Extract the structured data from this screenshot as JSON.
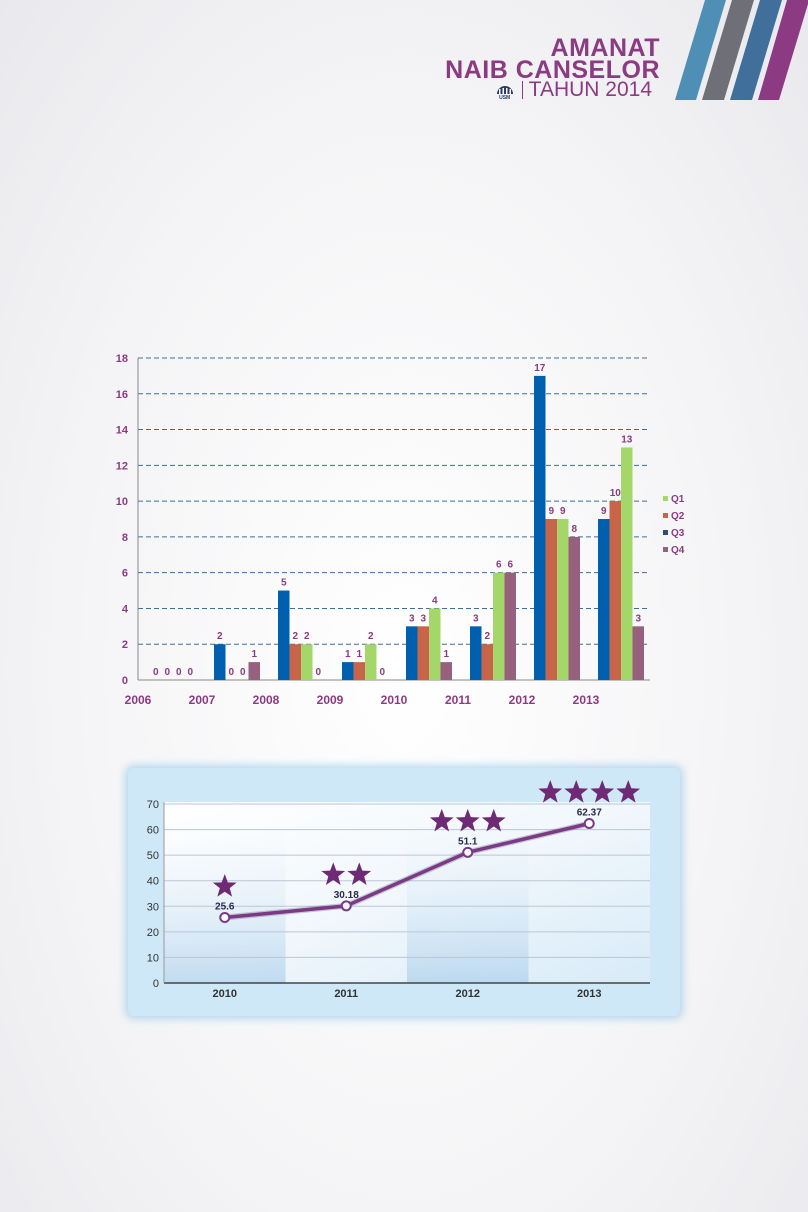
{
  "header": {
    "line1": "AMANAT",
    "line2": "NAIB CANSELOR",
    "line3": "TAHUN 2014",
    "logo_text": "USM",
    "brand_color": "#8c3a82"
  },
  "chart_data": [
    {
      "type": "bar",
      "categories": [
        "2006",
        "2007",
        "2008",
        "2009",
        "2010",
        "2011",
        "2012",
        "2013"
      ],
      "series": [
        {
          "name": "Q1",
          "color": "#0060b0",
          "values": [
            0,
            2,
            5,
            1,
            3,
            3,
            17,
            9
          ]
        },
        {
          "name": "Q2",
          "color": "#c86448",
          "values": [
            0,
            0,
            2,
            1,
            3,
            2,
            9,
            10
          ]
        },
        {
          "name": "Q3",
          "color": "#a5d66a",
          "values": [
            0,
            0,
            2,
            2,
            4,
            6,
            9,
            13
          ]
        },
        {
          "name": "Q4",
          "color": "#96607e",
          "values": [
            0,
            1,
            0,
            0,
            1,
            6,
            8,
            3
          ]
        }
      ],
      "legend_entries": [
        "Q1",
        "Q2",
        "Q3",
        "Q4"
      ],
      "legend_colors": [
        "#a5d66a",
        "#c86448",
        "#2c4f78",
        "#96607e"
      ],
      "y_ticks": [
        "0",
        "2",
        "4",
        "6",
        "8",
        "10",
        "12",
        "14",
        "16",
        "18"
      ],
      "ylim": [
        0,
        18
      ],
      "grid": true,
      "legend_position": "right"
    },
    {
      "type": "line",
      "categories": [
        "2010",
        "2011",
        "2012",
        "2013"
      ],
      "values": [
        25.6,
        30.18,
        51.1,
        62.37
      ],
      "value_labels": [
        "25.6",
        "30.18",
        "51.1",
        "62.37"
      ],
      "stars": [
        1,
        2,
        3,
        4
      ],
      "y_ticks": [
        "0",
        "10",
        "20",
        "30",
        "40",
        "50",
        "60",
        "70"
      ],
      "ylim": [
        0,
        70
      ],
      "grid": true,
      "line_color": "#7a3a86",
      "star_color": "#6e2a74"
    }
  ]
}
